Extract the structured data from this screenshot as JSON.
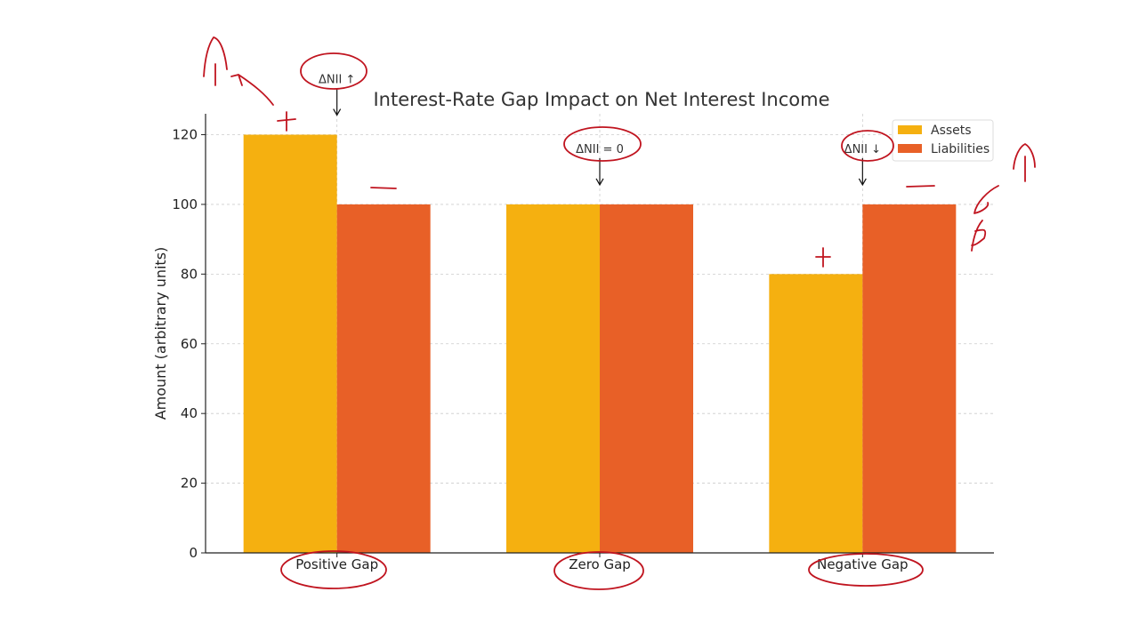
{
  "chart_data": {
    "type": "bar",
    "title": "Interest-Rate Gap Impact on Net Interest Income",
    "xlabel": "",
    "ylabel": "Amount (arbitrary units)",
    "categories": [
      "Positive Gap",
      "Zero Gap",
      "Negative Gap"
    ],
    "series": [
      {
        "name": "Assets",
        "values": [
          120,
          100,
          80
        ],
        "color": "#F5B010"
      },
      {
        "name": "Liabilities",
        "values": [
          100,
          100,
          100
        ],
        "color": "#E86027"
      }
    ],
    "ylim": [
      0,
      126
    ],
    "yticks": [
      0,
      20,
      40,
      60,
      80,
      100,
      120
    ],
    "grid": true,
    "legend_position": "top-right",
    "annotations": [
      {
        "category_index": 0,
        "text": "ΔNII ↑"
      },
      {
        "category_index": 1,
        "text": "ΔNII = 0"
      },
      {
        "category_index": 2,
        "text": "ΔNII ↓"
      }
    ]
  },
  "handwriting": {
    "color": "#C0141F",
    "marks": [
      "+",
      "−",
      "+",
      "−",
      "↑",
      "↑"
    ]
  }
}
